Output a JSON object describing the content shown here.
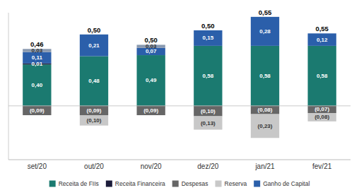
{
  "chart_data": {
    "type": "bar",
    "stacked": true,
    "data_labels": true,
    "grid": false,
    "tick_labels": "x",
    "legend": "bottom",
    "categories": [
      "set/20",
      "out/20",
      "nov/20",
      "dez/20",
      "jan/21",
      "fev/21"
    ],
    "ylim": [
      -0.52,
      0.9
    ],
    "series": [
      {
        "name": "Receita de FIIs",
        "color": "#1b7a70",
        "values": [
          0.4,
          0.48,
          0.49,
          0.58,
          0.58,
          0.58
        ],
        "value_labels": [
          "0,40",
          "0,48",
          "0,49",
          "0,58",
          "0,58",
          "0,58"
        ]
      },
      {
        "name": "Receita Financeira",
        "color": "#1c1c3a",
        "values": [
          0.01,
          0.0,
          0.0,
          0.0,
          0.0,
          0.0
        ],
        "value_labels": [
          "0,01",
          null,
          null,
          null,
          null,
          null
        ]
      },
      {
        "name": "Despesas",
        "color": "#666666",
        "values": [
          -0.09,
          -0.09,
          -0.09,
          -0.1,
          -0.08,
          -0.07
        ],
        "value_labels": [
          "(0,09)",
          "(0,09)",
          "(0,09)",
          "(0,10)",
          "(0,08)",
          "(0,07)"
        ]
      },
      {
        "name": "Reserva",
        "color": "#c8c8c8",
        "values": [
          0.0,
          -0.1,
          0.0,
          -0.13,
          -0.23,
          -0.08
        ],
        "value_labels": [
          null,
          "(0,10)",
          null,
          "(0,13)",
          "(0,23)",
          "(0,08)"
        ]
      },
      {
        "name": "Ganho de Capital",
        "color": "#2b5faa",
        "values": [
          0.11,
          0.21,
          0.07,
          0.15,
          0.28,
          0.12
        ],
        "value_labels": [
          "0,11",
          "0,21",
          "0,07",
          "0,15",
          "0,28",
          "0,12"
        ]
      },
      {
        "color": "#8a9ab0",
        "values": [
          0.03,
          0.0,
          0.03,
          0.0,
          0.0,
          0.0
        ],
        "value_labels": [
          "0,03",
          null,
          "0,03",
          null,
          null,
          null
        ]
      }
    ],
    "totals": [
      0.46,
      0.5,
      0.5,
      0.5,
      0.55,
      0.55
    ],
    "totals_labels": [
      "0,46",
      "0,50",
      "0,50",
      "0,50",
      "0,55",
      "0,55"
    ]
  }
}
